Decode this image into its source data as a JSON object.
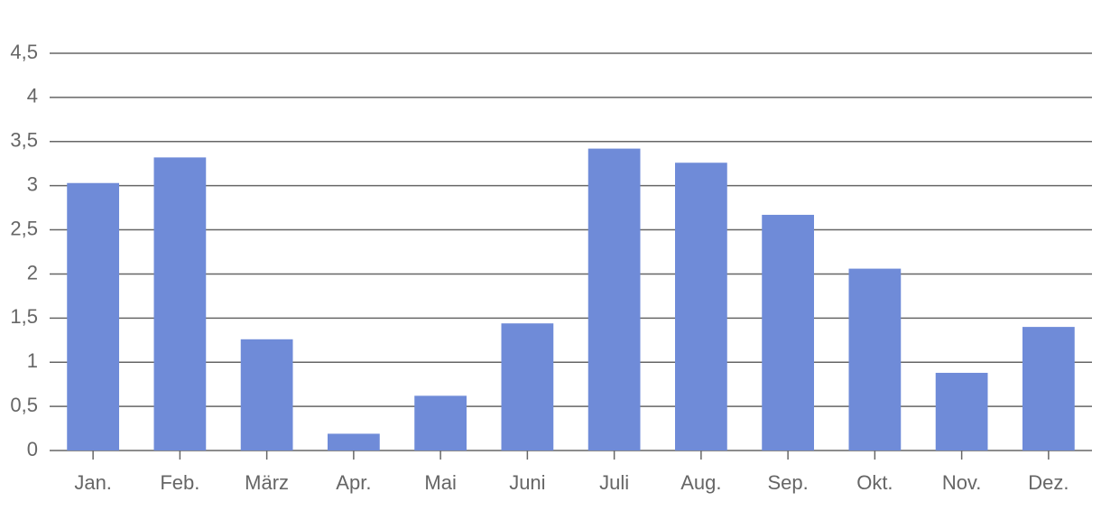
{
  "chart_data": {
    "type": "bar",
    "categories": [
      "Jan.",
      "Feb.",
      "März",
      "Apr.",
      "Mai",
      "Juni",
      "Juli",
      "Aug.",
      "Sep.",
      "Okt.",
      "Nov.",
      "Dez."
    ],
    "values": [
      3.03,
      3.32,
      1.26,
      0.19,
      0.62,
      1.44,
      3.42,
      3.26,
      2.67,
      2.06,
      0.88,
      1.4
    ],
    "color": "#6f8bd8",
    "ylim": [
      0,
      4.5
    ],
    "yticks": [
      0,
      {
        "value": 0.5,
        "label": "0,5"
      },
      1,
      {
        "value": 1.5,
        "label": "1,5"
      },
      2,
      {
        "value": 2.5,
        "label": "2,5"
      },
      3,
      {
        "value": 3.5,
        "label": "3,5"
      },
      4,
      {
        "value": 4.5,
        "label": "4,5"
      }
    ],
    "grid": true
  }
}
